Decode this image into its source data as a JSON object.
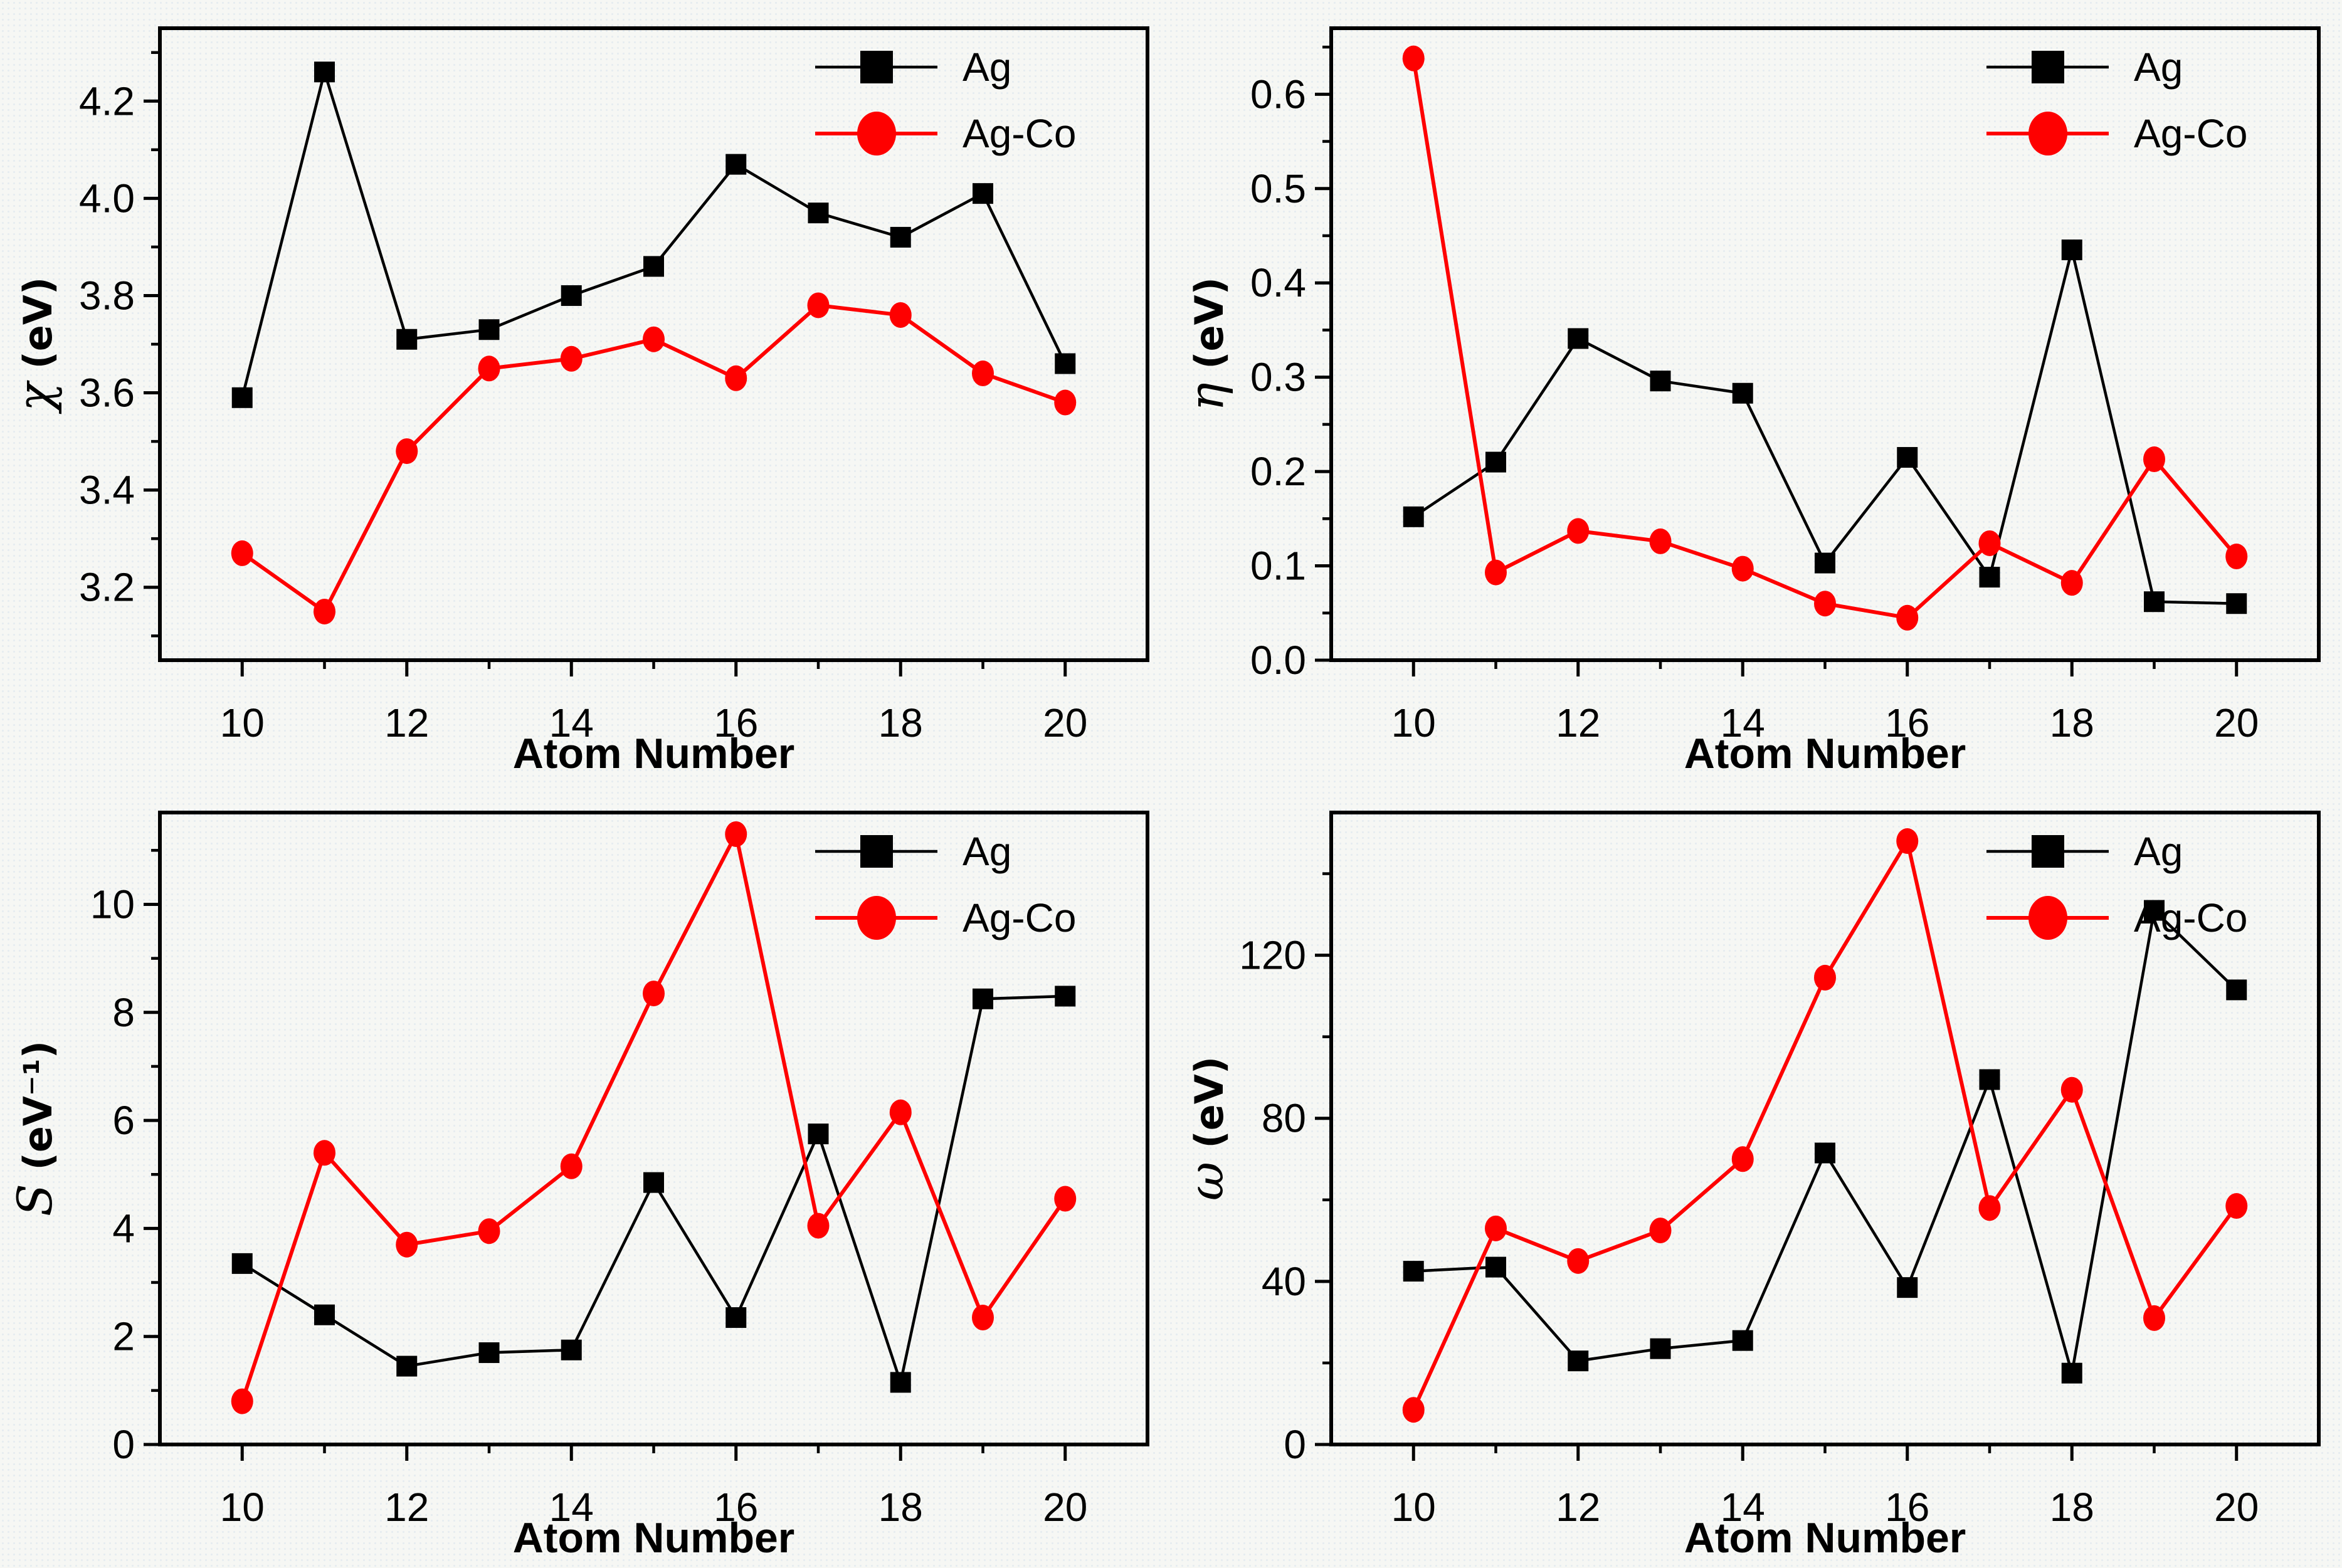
{
  "figure": {
    "background": "#f6f7f4",
    "axis_color": "#000000",
    "accent_red": "#fe0000",
    "accent_black": "#000000"
  },
  "legend": {
    "items": [
      {
        "label": "Ag",
        "color": "#000000",
        "marker": "square"
      },
      {
        "label": "Ag-Co",
        "color": "#fe0000",
        "marker": "circle"
      }
    ],
    "position": "top-right"
  },
  "chart_data": [
    {
      "type": "line",
      "panel": "top-left",
      "xlabel": "Atom Number",
      "ylabel": "χ (eV)",
      "ylabel_symbol": "χ",
      "ylabel_unit": " (eV)",
      "x": [
        10,
        11,
        12,
        13,
        14,
        15,
        16,
        17,
        18,
        19,
        20
      ],
      "xlim": [
        9,
        21
      ],
      "xticks": [
        10,
        12,
        14,
        16,
        18,
        20
      ],
      "xminor": [
        11,
        13,
        15,
        17,
        19
      ],
      "ylim": [
        3.05,
        4.35
      ],
      "yticks": [
        3.2,
        3.4,
        3.6,
        3.8,
        4.0,
        4.2
      ],
      "yminor_step": 0.1,
      "ytick_decimals": 1,
      "grid": false,
      "legend_position": "top-right",
      "series": [
        {
          "name": "Ag",
          "color": "#000000",
          "marker": "square",
          "values": [
            3.59,
            4.26,
            3.71,
            3.73,
            3.8,
            3.86,
            4.07,
            3.97,
            3.92,
            4.01,
            3.66
          ]
        },
        {
          "name": "Ag-Co",
          "color": "#fe0000",
          "marker": "circle",
          "values": [
            3.27,
            3.15,
            3.48,
            3.65,
            3.67,
            3.71,
            3.63,
            3.78,
            3.76,
            3.64,
            3.58
          ]
        }
      ]
    },
    {
      "type": "line",
      "panel": "top-right",
      "xlabel": "Atom Number",
      "ylabel": "η (eV)",
      "ylabel_symbol": "η",
      "ylabel_unit": " (eV)",
      "x": [
        10,
        11,
        12,
        13,
        14,
        15,
        16,
        17,
        18,
        19,
        20
      ],
      "xlim": [
        9,
        21
      ],
      "xticks": [
        10,
        12,
        14,
        16,
        18,
        20
      ],
      "xminor": [
        11,
        13,
        15,
        17,
        19
      ],
      "ylim": [
        0,
        0.67
      ],
      "yticks": [
        0.0,
        0.1,
        0.2,
        0.3,
        0.4,
        0.5,
        0.6
      ],
      "yminor_step": 0.05,
      "ytick_decimals": 1,
      "grid": false,
      "legend_position": "top-right",
      "series": [
        {
          "name": "Ag",
          "color": "#000000",
          "marker": "square",
          "values": [
            0.152,
            0.21,
            0.341,
            0.296,
            0.283,
            0.103,
            0.215,
            0.088,
            0.435,
            0.062,
            0.06
          ]
        },
        {
          "name": "Ag-Co",
          "color": "#fe0000",
          "marker": "circle",
          "values": [
            0.638,
            0.093,
            0.137,
            0.126,
            0.097,
            0.06,
            0.045,
            0.124,
            0.082,
            0.213,
            0.11
          ]
        }
      ]
    },
    {
      "type": "line",
      "panel": "bottom-left",
      "xlabel": "Atom Number",
      "ylabel": "S (eV⁻¹)",
      "ylabel_symbol": "S",
      "ylabel_unit": " (eV⁻¹)",
      "x": [
        10,
        11,
        12,
        13,
        14,
        15,
        16,
        17,
        18,
        19,
        20
      ],
      "xlim": [
        9,
        21
      ],
      "xticks": [
        10,
        12,
        14,
        16,
        18,
        20
      ],
      "xminor": [
        11,
        13,
        15,
        17,
        19
      ],
      "ylim": [
        0,
        11.7
      ],
      "yticks": [
        0,
        2,
        4,
        6,
        8,
        10
      ],
      "yminor_step": 1,
      "ytick_decimals": 0,
      "grid": false,
      "legend_position": "top-right",
      "series": [
        {
          "name": "Ag",
          "color": "#000000",
          "marker": "square",
          "values": [
            3.35,
            2.4,
            1.45,
            1.7,
            1.75,
            4.85,
            2.35,
            5.75,
            1.15,
            8.25,
            8.3
          ]
        },
        {
          "name": "Ag-Co",
          "color": "#fe0000",
          "marker": "circle",
          "values": [
            0.8,
            5.4,
            3.7,
            3.95,
            5.15,
            8.35,
            11.3,
            4.05,
            6.15,
            2.35,
            4.55
          ]
        }
      ]
    },
    {
      "type": "line",
      "panel": "bottom-right",
      "xlabel": "Atom Number",
      "ylabel": "ω (eV)",
      "ylabel_symbol": "ω",
      "ylabel_unit": " (eV)",
      "x": [
        10,
        11,
        12,
        13,
        14,
        15,
        16,
        17,
        18,
        19,
        20
      ],
      "xlim": [
        9,
        21
      ],
      "xticks": [
        10,
        12,
        14,
        16,
        18,
        20
      ],
      "xminor": [
        11,
        13,
        15,
        17,
        19
      ],
      "ylim": [
        0,
        155
      ],
      "yticks": [
        0,
        40,
        80,
        120
      ],
      "yminor_step": 20,
      "ytick_decimals": 0,
      "grid": false,
      "legend_position": "top-right",
      "series": [
        {
          "name": "Ag",
          "color": "#000000",
          "marker": "square",
          "values": [
            42.5,
            43.5,
            20.5,
            23.5,
            25.5,
            71.5,
            38.5,
            89.5,
            17.5,
            131,
            111.5
          ]
        },
        {
          "name": "Ag-Co",
          "color": "#fe0000",
          "marker": "circle",
          "values": [
            8.5,
            53,
            45,
            52.5,
            70,
            114.5,
            148,
            58,
            87,
            31,
            58.5
          ]
        }
      ]
    }
  ]
}
